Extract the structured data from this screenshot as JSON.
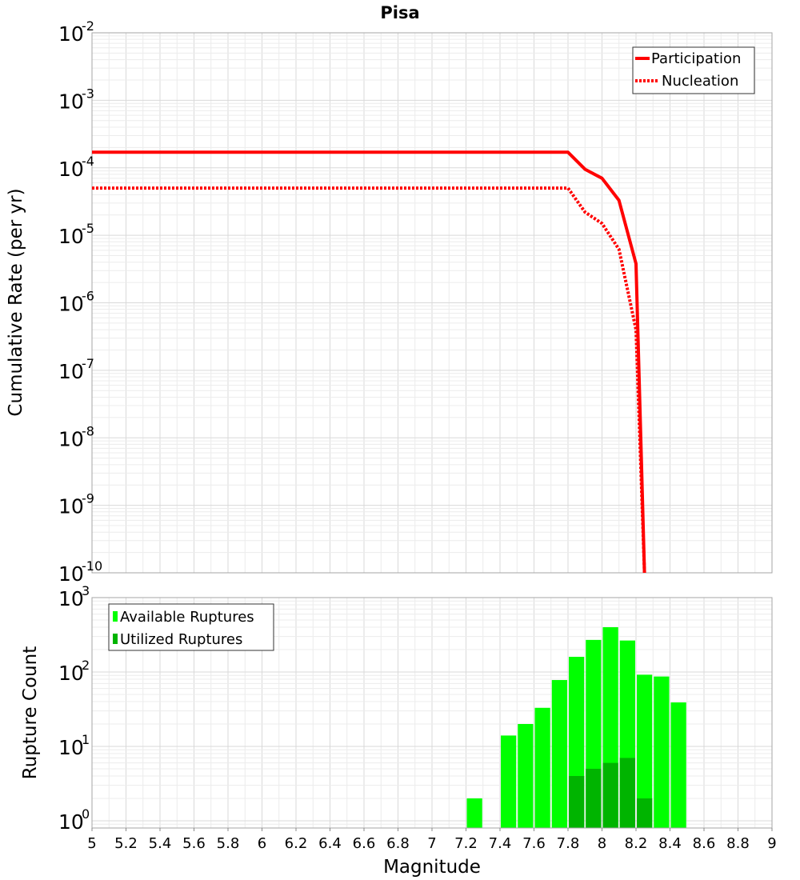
{
  "chart_data": [
    {
      "type": "line",
      "title": "Pisa",
      "xlabel": "Magnitude",
      "ylabel": "Cumulative Rate (per yr)",
      "yscale": "log",
      "xlim": [
        5,
        9
      ],
      "ylim": [
        1e-10,
        0.01
      ],
      "ytick_labels": [
        {
          "base": "10",
          "exp": "-2"
        },
        {
          "base": "10",
          "exp": "-3"
        },
        {
          "base": "10",
          "exp": "-4"
        },
        {
          "base": "10",
          "exp": "-5"
        },
        {
          "base": "10",
          "exp": "-6"
        },
        {
          "base": "10",
          "exp": "-7"
        },
        {
          "base": "10",
          "exp": "-8"
        },
        {
          "base": "10",
          "exp": "-9"
        },
        {
          "base": "10",
          "exp": "-10"
        }
      ],
      "legend_position": "top-right",
      "series": [
        {
          "name": "Participation",
          "style": "solid",
          "color": "#ff0000",
          "x": [
            5.0,
            7.8,
            7.9,
            8.0,
            8.1,
            8.2,
            8.25
          ],
          "y": [
            0.00017,
            0.00017,
            9.5e-05,
            7e-05,
            3.3e-05,
            3.8e-06,
            1e-10
          ]
        },
        {
          "name": "Nucleation",
          "style": "dotted",
          "color": "#ff0000",
          "x": [
            5.0,
            7.8,
            7.9,
            8.0,
            8.1,
            8.2,
            8.25
          ],
          "y": [
            5e-05,
            5e-05,
            2.2e-05,
            1.5e-05,
            6.2e-06,
            4e-07,
            1e-10
          ]
        }
      ]
    },
    {
      "type": "bar",
      "xlabel": "Magnitude",
      "ylabel": "Rupture Count",
      "yscale": "log",
      "xlim": [
        5,
        9
      ],
      "ylim": [
        0.8,
        1000
      ],
      "ytick_labels": [
        {
          "base": "10",
          "exp": "3"
        },
        {
          "base": "10",
          "exp": "2"
        },
        {
          "base": "10",
          "exp": "1"
        },
        {
          "base": "10",
          "exp": "0"
        }
      ],
      "xtick_labels": [
        "5",
        "5.2",
        "5.4",
        "5.6",
        "5.8",
        "6",
        "6.2",
        "6.4",
        "6.6",
        "6.8",
        "7",
        "7.2",
        "7.4",
        "7.6",
        "7.8",
        "8",
        "8.2",
        "8.4",
        "8.6",
        "8.8",
        "9"
      ],
      "legend_position": "top-left",
      "bin_width": 0.1,
      "series": [
        {
          "name": "Available Ruptures",
          "color": "#00ff00",
          "x": [
            7.25,
            7.45,
            7.55,
            7.65,
            7.75,
            7.85,
            7.95,
            8.05,
            8.15,
            8.25,
            8.35,
            8.45
          ],
          "values": [
            2,
            14,
            20,
            33,
            78,
            160,
            270,
            400,
            265,
            92,
            87,
            39
          ]
        },
        {
          "name": "Utilized Ruptures",
          "color": "#00b400",
          "x": [
            7.85,
            7.95,
            8.05,
            8.15,
            8.25
          ],
          "values": [
            4,
            5,
            6,
            7,
            2
          ]
        }
      ]
    }
  ]
}
